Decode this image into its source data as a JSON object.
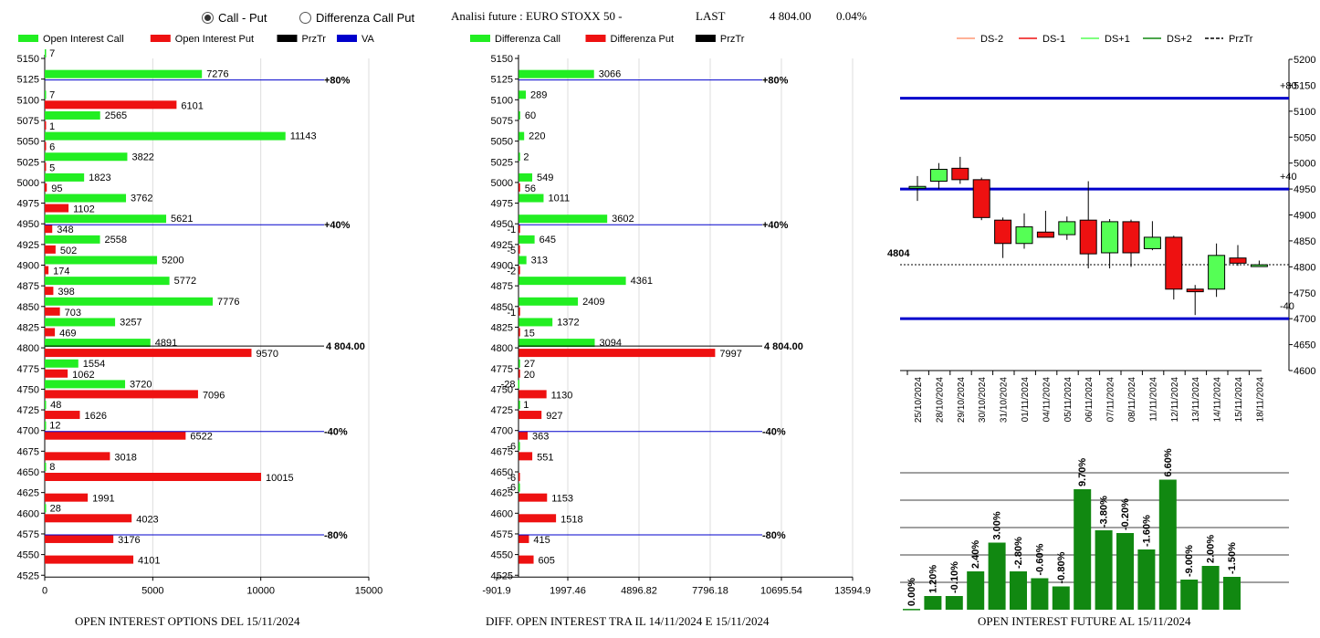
{
  "header": {
    "radio_call_put": "Call - Put",
    "radio_diff": "Differenza Call Put",
    "analysis_label": "Analisi future : EURO STOXX 50 -",
    "last_label": "LAST",
    "last_value": "4 804.00",
    "last_change": "0.04%"
  },
  "colors": {
    "green": "#22ee22",
    "red": "#ee1111",
    "blue": "#0000cc",
    "darkgreen": "#118811",
    "black": "#000000",
    "orange": "#ff9977",
    "lightgreen": "#55ff55"
  },
  "legends": {
    "oi": [
      "Open Interest Call",
      "Open Interest Put",
      "PrzTr",
      "VA"
    ],
    "diff": [
      "Differenza Call",
      "Differenza Put",
      "PrzTr"
    ],
    "candle": [
      "DS-2",
      "DS-1",
      "DS+1",
      "DS+2",
      "PrzTr"
    ]
  },
  "titles": {
    "oi": "OPEN INTEREST OPTIONS DEL 15/11/2024",
    "diff": "DIFF. OPEN INTEREST TRA IL 14/11/2024 E 15/11/2024",
    "fut": "OPEN INTEREST FUTURE AL 15/11/2024"
  },
  "chart_data": [
    {
      "type": "bar",
      "strikes": [
        5150,
        5125,
        5100,
        5075,
        5050,
        5025,
        5000,
        4975,
        4950,
        4925,
        4900,
        4875,
        4850,
        4825,
        4800,
        4775,
        4750,
        4725,
        4700,
        4675,
        4650,
        4625,
        4600,
        4575,
        4550,
        4525
      ],
      "series": [
        {
          "name": "Open Interest Call",
          "values": [
            7,
            7276,
            7,
            2565,
            11143,
            3822,
            1823,
            3762,
            5621,
            2558,
            5200,
            5772,
            7776,
            3257,
            4891,
            1554,
            3720,
            48,
            12,
            null,
            8,
            null,
            28,
            null,
            null,
            null
          ]
        },
        {
          "name": "Open Interest Put",
          "values": [
            null,
            null,
            6101,
            1,
            6,
            5,
            95,
            1102,
            348,
            502,
            174,
            398,
            703,
            469,
            9570,
            1062,
            7096,
            1626,
            6522,
            3018,
            10015,
            1991,
            4023,
            3176,
            4101,
            null
          ]
        }
      ],
      "xlim": [
        0,
        15000
      ],
      "xticks": [
        "0",
        "5000",
        "10000",
        "15000"
      ],
      "ref_lines": [
        {
          "strike": 5125,
          "label": "+80%"
        },
        {
          "strike": 4950,
          "label": "+40%"
        },
        {
          "strike": 4800,
          "label": "4 804.00"
        },
        {
          "strike": 4700,
          "label": "-40%"
        },
        {
          "strike": 4575,
          "label": "-80%"
        }
      ]
    },
    {
      "type": "bar",
      "strikes": [
        5150,
        5125,
        5100,
        5075,
        5050,
        5025,
        5000,
        4975,
        4950,
        4925,
        4900,
        4875,
        4850,
        4825,
        4800,
        4775,
        4750,
        4725,
        4700,
        4675,
        4650,
        4625,
        4600,
        4575,
        4550,
        4525
      ],
      "series": [
        {
          "name": "Differenza Call",
          "values": [
            null,
            3066,
            289,
            60,
            220,
            2,
            549,
            1011,
            3602,
            645,
            313,
            4361,
            2409,
            1372,
            3094,
            27,
            -28,
            1,
            null,
            -6,
            null,
            -6,
            null,
            null,
            null,
            null
          ]
        },
        {
          "name": "Differenza Put",
          "values": [
            null,
            null,
            null,
            null,
            null,
            null,
            56,
            null,
            -1,
            -5,
            -2,
            null,
            -1,
            15,
            7997,
            20,
            1130,
            927,
            363,
            551,
            -6,
            1153,
            1518,
            415,
            605,
            null
          ]
        }
      ],
      "xlim": [
        -901.9,
        13594.9
      ],
      "xticks": [
        "-901.9",
        "1997.46",
        "4896.82",
        "7796.18",
        "10695.54",
        "13594.9"
      ],
      "ref_lines": [
        {
          "strike": 5125,
          "label": "+80%"
        },
        {
          "strike": 4950,
          "label": "+40%"
        },
        {
          "strike": 4800,
          "label": "4 804.00"
        },
        {
          "strike": 4700,
          "label": "-40%"
        },
        {
          "strike": 4575,
          "label": "-80%"
        }
      ]
    },
    {
      "type": "candlestick",
      "x": [
        "25/10/2024",
        "28/10/2024",
        "29/10/2024",
        "30/10/2024",
        "31/10/2024",
        "01/11/2024",
        "04/11/2024",
        "05/11/2024",
        "06/11/2024",
        "07/11/2024",
        "08/11/2024",
        "11/11/2024",
        "12/11/2024",
        "13/11/2024",
        "14/11/2024",
        "15/11/2024",
        "18/11/2024"
      ],
      "candles": [
        {
          "o": 4955,
          "h": 4975,
          "l": 4927,
          "c": 4955
        },
        {
          "o": 4965,
          "h": 5000,
          "l": 4950,
          "c": 4988
        },
        {
          "o": 4990,
          "h": 5012,
          "l": 4960,
          "c": 4968
        },
        {
          "o": 4968,
          "h": 4972,
          "l": 4890,
          "c": 4895
        },
        {
          "o": 4890,
          "h": 4895,
          "l": 4817,
          "c": 4845
        },
        {
          "o": 4845,
          "h": 4903,
          "l": 4835,
          "c": 4877
        },
        {
          "o": 4867,
          "h": 4908,
          "l": 4862,
          "c": 4857
        },
        {
          "o": 4862,
          "h": 4897,
          "l": 4852,
          "c": 4887
        },
        {
          "o": 4890,
          "h": 4965,
          "l": 4797,
          "c": 4825
        },
        {
          "o": 4827,
          "h": 4892,
          "l": 4797,
          "c": 4887
        },
        {
          "o": 4887,
          "h": 4891,
          "l": 4800,
          "c": 4827
        },
        {
          "o": 4835,
          "h": 4888,
          "l": 4832,
          "c": 4857
        },
        {
          "o": 4857,
          "h": 4860,
          "l": 4737,
          "c": 4757
        },
        {
          "o": 4757,
          "h": 4765,
          "l": 4707,
          "c": 4752
        },
        {
          "o": 4757,
          "h": 4845,
          "l": 4742,
          "c": 4822
        },
        {
          "o": 4817,
          "h": 4842,
          "l": 4802,
          "c": 4807
        },
        {
          "o": 4804,
          "h": 4812,
          "l": 4800,
          "c": 4804
        }
      ],
      "ylim": [
        4600,
        5200
      ],
      "yticks": [
        "4600",
        "4650",
        "4700",
        "4750",
        "4800",
        "4850",
        "4900",
        "4950",
        "5000",
        "5050",
        "5100",
        "5150",
        "5200"
      ],
      "levels": [
        {
          "value": 5125,
          "label": "+80"
        },
        {
          "value": 4950,
          "label": "+40"
        },
        {
          "value": 4700,
          "label": "-40"
        }
      ],
      "przTr": 4804,
      "przTr_label": "4804"
    },
    {
      "type": "bar",
      "labels": [
        "0.00%",
        "1.20%",
        "-0.10%",
        "2.40%",
        "3.00%",
        "-2.80%",
        "-0.60%",
        "-0.80%",
        "9.70%",
        "-3.80%",
        "-0.20%",
        "-1.60%",
        "6.60%",
        "-9.00%",
        "2.00%",
        "-1.50%"
      ],
      "heights": [
        0.6,
        10,
        10,
        28,
        49,
        28,
        23,
        17,
        88,
        58,
        56,
        44,
        95,
        22,
        32,
        24
      ]
    }
  ]
}
